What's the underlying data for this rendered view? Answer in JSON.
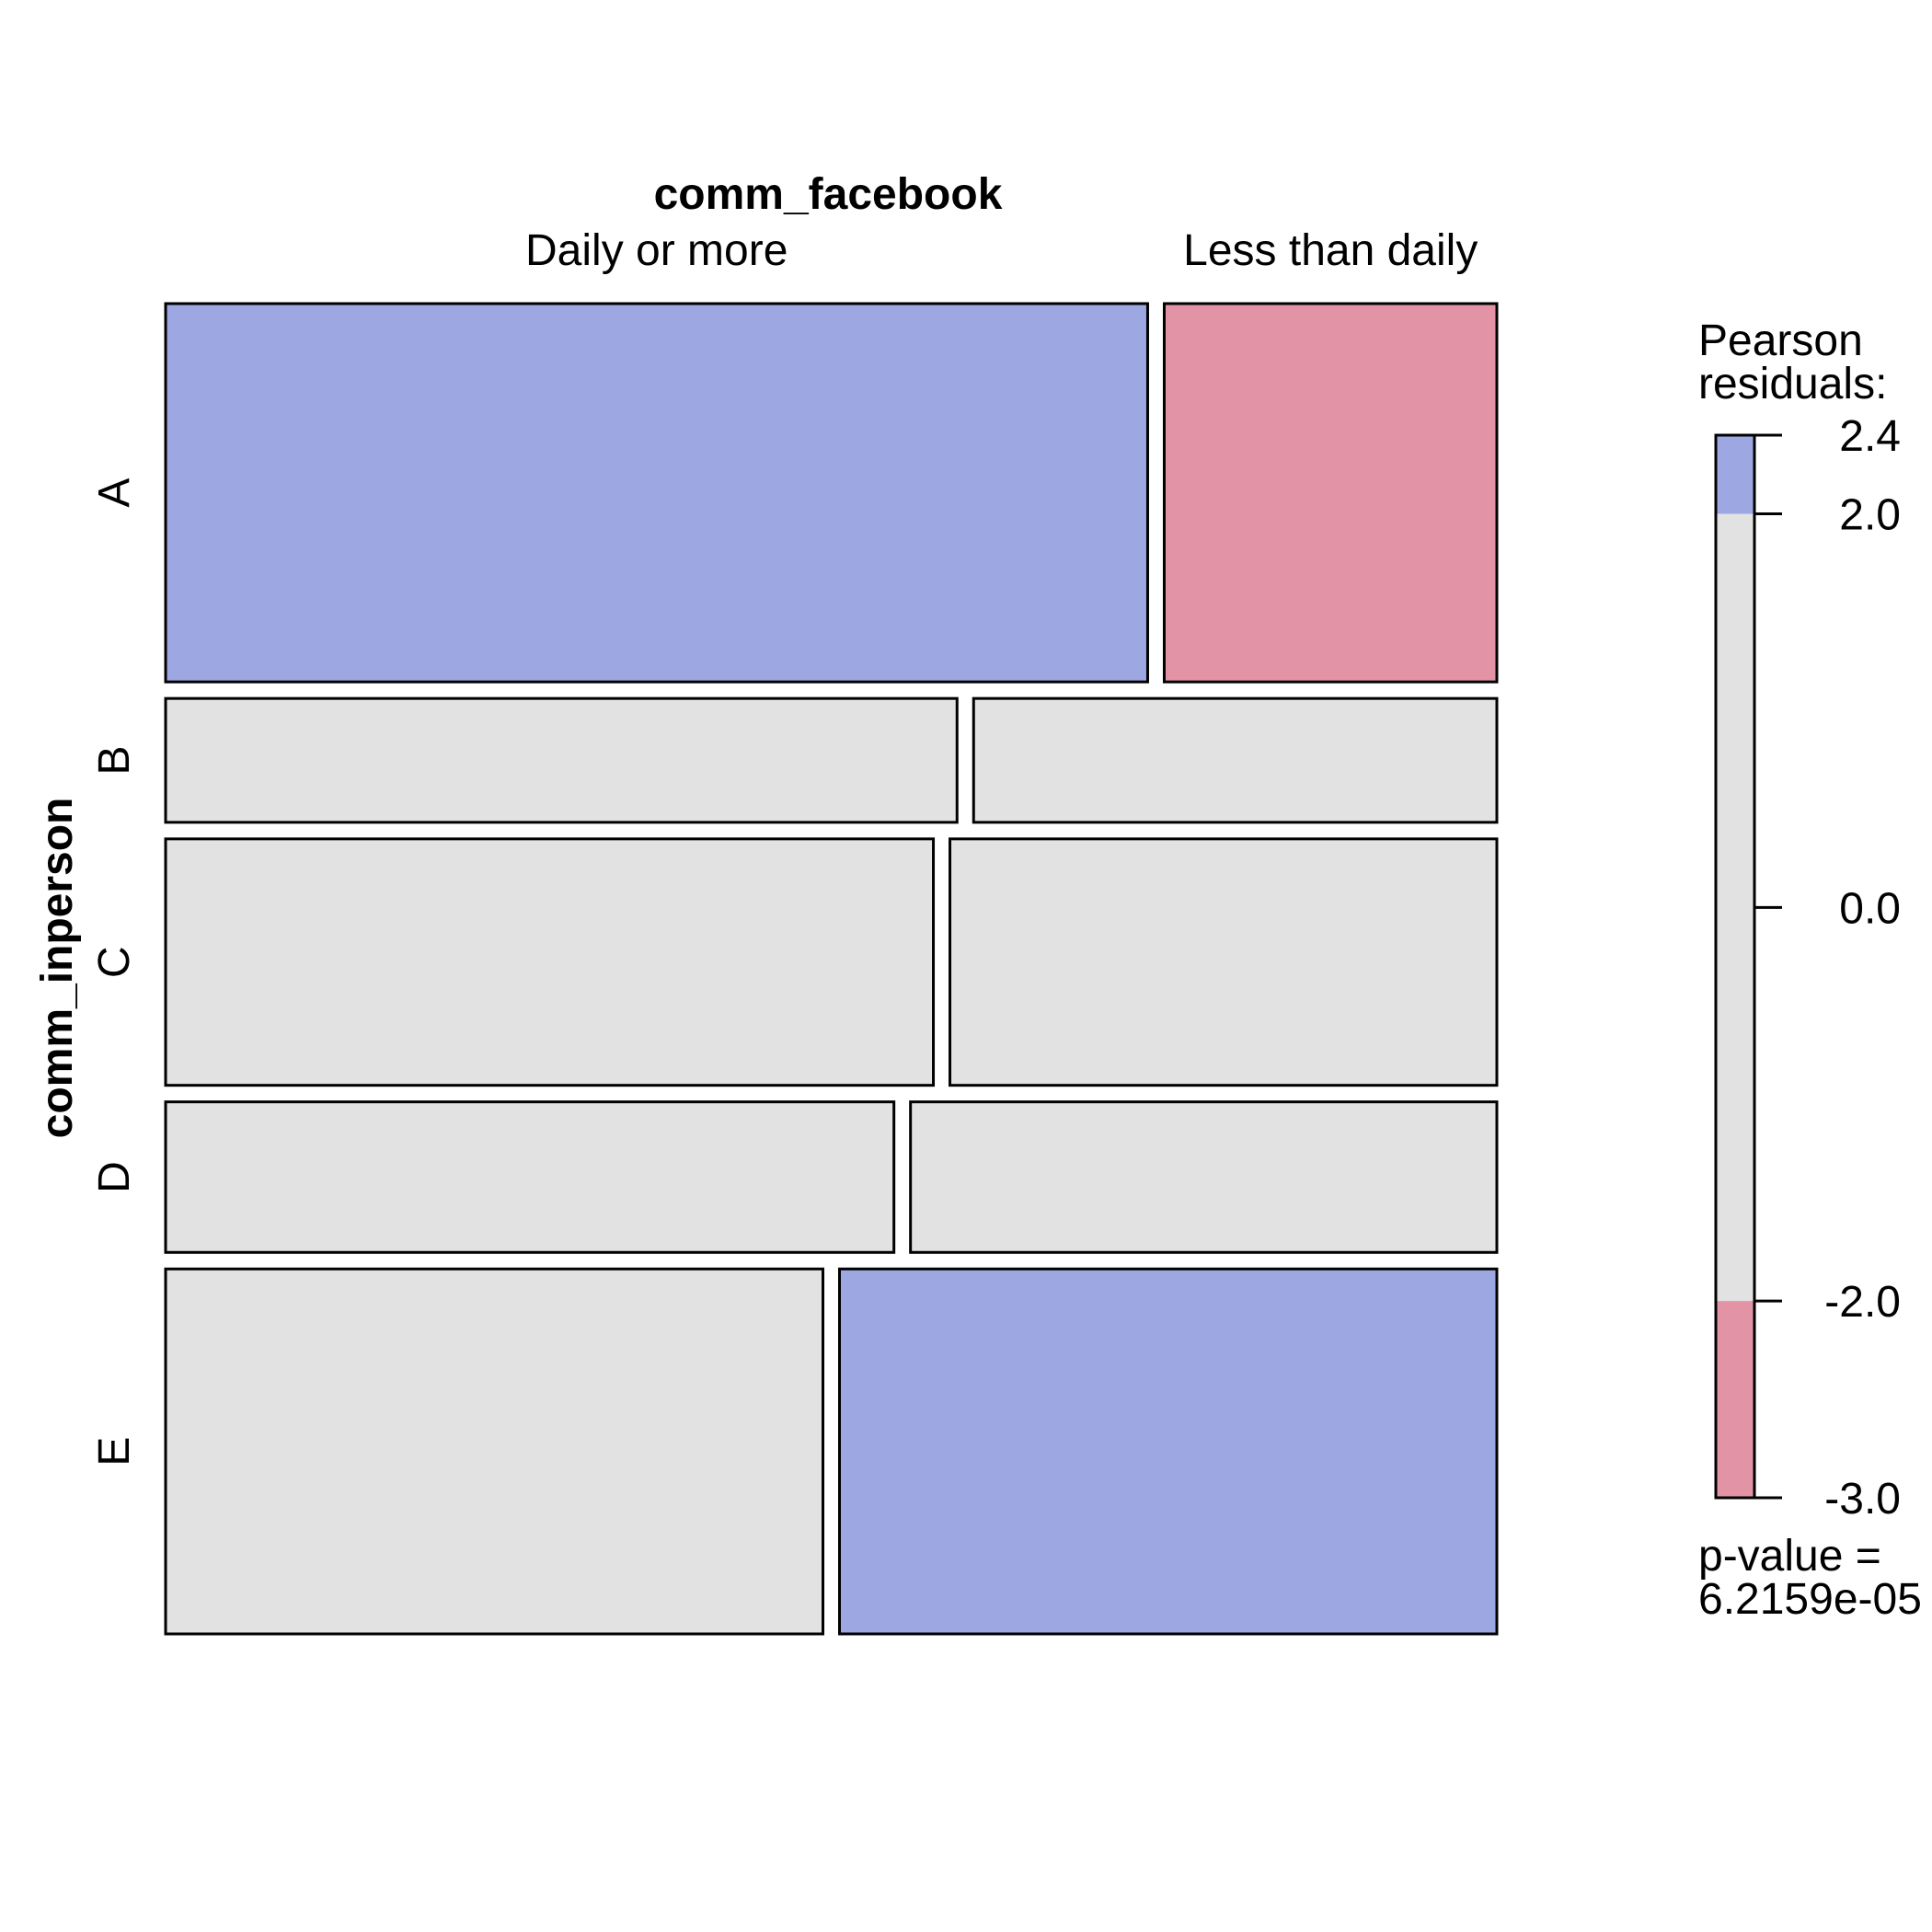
{
  "chart_data": {
    "type": "mosaic",
    "title": "",
    "x_variable": "comm_facebook",
    "y_variable": "comm_inperson",
    "x_categories": [
      "Daily or more",
      "Less than daily"
    ],
    "x_category_labels": [
      {
        "name": "Daily or more",
        "row": "A"
      },
      {
        "name": "Less than daily",
        "row": "A"
      }
    ],
    "rows": [
      {
        "name": "A",
        "proportion": 0.284,
        "split": [
          0.747,
          0.253
        ],
        "fills": [
          "#9DA7E2",
          "#E294A6"
        ]
      },
      {
        "name": "B",
        "proportion": 0.093,
        "split": [
          0.602,
          0.398
        ],
        "fills": [
          "#E2E2E2",
          "#E2E2E2"
        ]
      },
      {
        "name": "C",
        "proportion": 0.185,
        "split": [
          0.584,
          0.416
        ],
        "fills": [
          "#E2E2E2",
          "#E2E2E2"
        ]
      },
      {
        "name": "D",
        "proportion": 0.113,
        "split": [
          0.554,
          0.446
        ],
        "fills": [
          "#E2E2E2",
          "#E2E2E2"
        ]
      },
      {
        "name": "E",
        "proportion": 0.274,
        "split": [
          0.5,
          0.5
        ],
        "fills": [
          "#E2E2E2",
          "#9DA7E2"
        ]
      }
    ],
    "legend": {
      "title_line1": "Pearson",
      "title_line2": "residuals:",
      "range": [
        -3.0,
        2.4
      ],
      "ticks": [
        "2.4",
        "2.0",
        "0.0",
        "-2.0",
        "-3.0"
      ],
      "tick_values": [
        2.4,
        2.0,
        0.0,
        -2.0,
        -3.0
      ],
      "bands": [
        {
          "from": 2.0,
          "to": 2.4,
          "color": "#9DA7E2"
        },
        {
          "from": -2.0,
          "to": 2.0,
          "color": "#E2E2E2"
        },
        {
          "from": -3.0,
          "to": -2.0,
          "color": "#E294A6"
        }
      ],
      "pvalue_label": "p-value =",
      "pvalue": "6.2159e-05"
    },
    "colors": {
      "positive": "#9DA7E2",
      "negative": "#E294A6",
      "neutral": "#E2E2E2"
    }
  }
}
